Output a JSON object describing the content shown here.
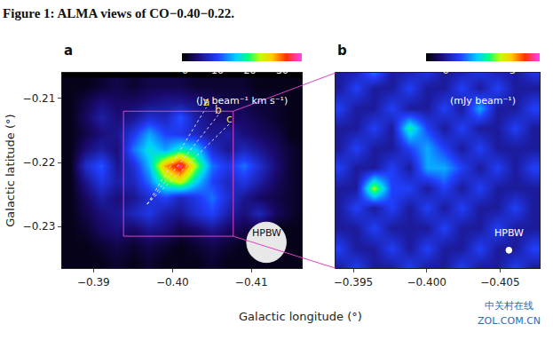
{
  "figure": {
    "title": "Figure 1: ALMA views of CO−0.40−0.22.",
    "x_label": "Galactic longitude (°)",
    "y_label": "Galactic latitude (°)",
    "watermark": [
      "中关村在线",
      "ZOL.COM.CN"
    ]
  },
  "chart_data": [
    {
      "type": "heatmap",
      "label": "a",
      "x": [
        -0.387,
        -0.389,
        -0.391,
        -0.393,
        -0.395,
        -0.397,
        -0.399,
        -0.401,
        -0.403,
        -0.405,
        -0.407,
        -0.409,
        -0.411,
        -0.413,
        -0.415,
        -0.417
      ],
      "y": [
        -0.2355,
        -0.233,
        -0.2305,
        -0.228,
        -0.2255,
        -0.223,
        -0.2205,
        -0.218,
        -0.2155,
        -0.213,
        -0.2105,
        -0.208
      ],
      "z": [
        [
          0,
          0,
          0,
          1,
          0,
          1,
          0,
          0,
          0,
          1,
          0,
          0,
          0,
          0,
          0,
          0
        ],
        [
          0,
          0,
          1,
          2,
          1,
          2,
          1,
          0,
          1,
          2,
          1,
          0,
          0,
          0,
          0,
          0
        ],
        [
          0,
          1,
          3,
          4,
          3,
          5,
          4,
          2,
          3,
          5,
          3,
          2,
          1,
          0,
          0,
          0
        ],
        [
          0,
          2,
          4,
          5,
          7,
          9,
          6,
          5,
          8,
          10,
          6,
          4,
          7,
          3,
          1,
          0
        ],
        [
          0,
          3,
          6,
          4,
          5,
          8,
          10,
          7,
          9,
          12,
          8,
          5,
          3,
          2,
          1,
          0
        ],
        [
          0,
          5,
          9,
          6,
          7,
          12,
          20,
          24,
          16,
          10,
          7,
          9,
          6,
          3,
          1,
          0
        ],
        [
          0,
          8,
          11,
          5,
          8,
          15,
          28,
          34,
          22,
          12,
          9,
          12,
          8,
          4,
          1,
          0
        ],
        [
          0,
          4,
          6,
          4,
          12,
          17,
          14,
          18,
          16,
          8,
          5,
          7,
          5,
          3,
          1,
          0
        ],
        [
          0,
          2,
          4,
          5,
          9,
          14,
          10,
          9,
          7,
          5,
          6,
          4,
          3,
          2,
          0,
          0
        ],
        [
          0,
          3,
          6,
          4,
          5,
          8,
          7,
          11,
          6,
          4,
          3,
          3,
          2,
          1,
          0,
          0
        ],
        [
          0,
          2,
          4,
          3,
          3,
          4,
          5,
          5,
          4,
          3,
          2,
          2,
          1,
          1,
          0,
          0
        ],
        [
          0,
          0,
          1,
          2,
          1,
          2,
          2,
          2,
          1,
          1,
          1,
          1,
          0,
          0,
          0,
          0
        ]
      ],
      "xlim": [
        -0.386,
        -0.4164
      ],
      "ylim": [
        -0.2365,
        -0.206
      ],
      "xticks": [
        {
          "value": -0.39,
          "label": "−0.39"
        },
        {
          "value": -0.4,
          "label": "−0.40"
        },
        {
          "value": -0.41,
          "label": "−0.41"
        }
      ],
      "yticks": [
        {
          "value": -0.23,
          "label": "−0.23"
        },
        {
          "value": -0.22,
          "label": "−0.22"
        },
        {
          "value": -0.21,
          "label": "−0.21"
        }
      ],
      "tick_labels": true,
      "zlim": [
        -1,
        36
      ],
      "zticks": [
        0,
        10,
        20,
        30
      ],
      "colorbar_label": "(Jy beam⁻¹ km s⁻¹)",
      "annotations": [
        "a",
        "b",
        "c",
        "HPBW"
      ]
    },
    {
      "type": "heatmap",
      "label": "b",
      "x": [
        -0.394,
        -0.3952,
        -0.3964,
        -0.3976,
        -0.3988,
        -0.4,
        -0.4012,
        -0.4024,
        -0.4036,
        -0.4048,
        -0.406,
        -0.4072
      ],
      "y": [
        -0.2315,
        -0.2295,
        -0.2275,
        -0.2255,
        -0.2235,
        -0.2215,
        -0.2195,
        -0.2175,
        -0.2155,
        -0.2135,
        -0.2115
      ],
      "z": [
        [
          0,
          1,
          0,
          0,
          1,
          0,
          0,
          1,
          0,
          0,
          1,
          0
        ],
        [
          1,
          0,
          0,
          1,
          0,
          1,
          0,
          0,
          1,
          0,
          0,
          1
        ],
        [
          0,
          0,
          1,
          0,
          0,
          0,
          1,
          0,
          0,
          1,
          0,
          0
        ],
        [
          0,
          1,
          0,
          1,
          0,
          1,
          0,
          1,
          0,
          0,
          1,
          0
        ],
        [
          0,
          0,
          4,
          1,
          1,
          0,
          1,
          0,
          1,
          0,
          0,
          0
        ],
        [
          1,
          0,
          0,
          1,
          0,
          2,
          2,
          1,
          0,
          1,
          0,
          1
        ],
        [
          0,
          1,
          0,
          0,
          1,
          2,
          1,
          0,
          1,
          0,
          0,
          0
        ],
        [
          0,
          0,
          1,
          0,
          3,
          1,
          0,
          1,
          0,
          0,
          1,
          0
        ],
        [
          1,
          0,
          0,
          1,
          0,
          0,
          1,
          0,
          2,
          0,
          0,
          1
        ],
        [
          0,
          1,
          0,
          0,
          1,
          0,
          0,
          1,
          0,
          1,
          0,
          0
        ],
        [
          0,
          0,
          2,
          0,
          0,
          1,
          0,
          0,
          1,
          0,
          0,
          1
        ]
      ],
      "xlim": [
        -0.3938,
        -0.4077
      ],
      "ylim": [
        -0.2315,
        -0.212
      ],
      "xticks": [
        {
          "value": -0.395,
          "label": "−0.395"
        },
        {
          "value": -0.4,
          "label": "−0.400"
        },
        {
          "value": -0.405,
          "label": "−0.405"
        }
      ],
      "tick_labels": "x",
      "zlim": [
        -1.5,
        7
      ],
      "zticks": [
        0,
        5
      ],
      "colorbar_label": "(mJy beam⁻¹)",
      "annotations": [
        "HPBW"
      ]
    }
  ]
}
